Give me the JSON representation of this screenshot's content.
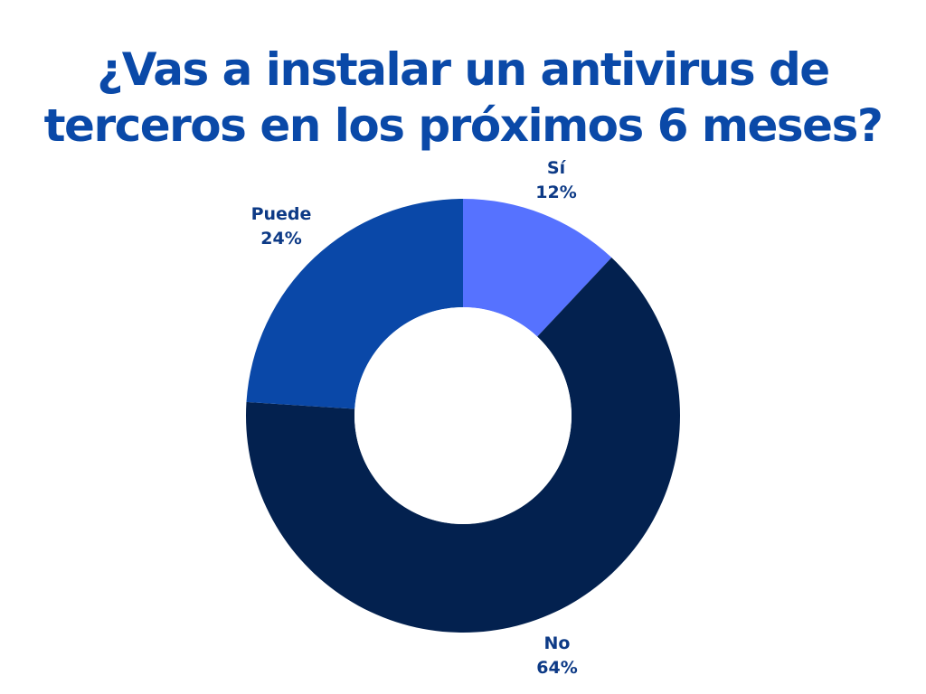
{
  "chart_data": {
    "type": "pie",
    "variant": "donut",
    "title_lines": [
      "¿Vas a instalar un antivirus de",
      "terceros en los próximos 6 meses?"
    ],
    "slices": [
      {
        "label": "Sí",
        "value": 12,
        "value_label": "12%",
        "color": "#5672ff"
      },
      {
        "label": "No",
        "value": 64,
        "value_label": "64%",
        "color": "#03214f"
      },
      {
        "label": "Puede",
        "value": 24,
        "value_label": "24%",
        "color": "#0a48a8"
      }
    ],
    "start_angle": "12 o'clock",
    "direction": "clockwise",
    "legend": "none",
    "label_color": "#0d3a86",
    "title_color": "#0a49a8"
  }
}
